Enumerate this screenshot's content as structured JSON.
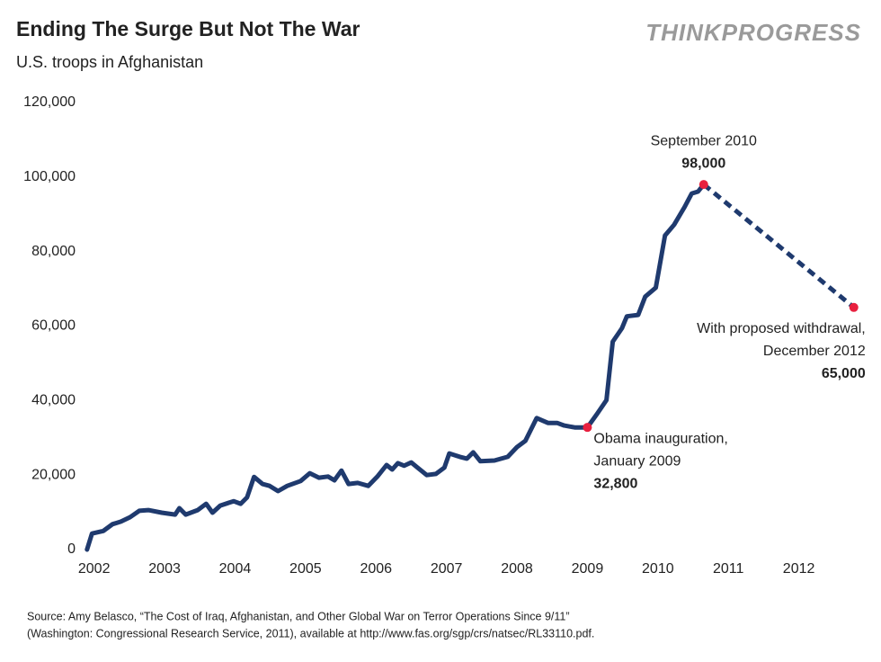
{
  "chart_data": {
    "type": "line",
    "title": "Ending The Surge But Not The War",
    "subtitle": "U.S. troops in Afghanistan",
    "brand": "THINKPROGRESS",
    "source": [
      "Source: Amy Belasco, “The Cost of Iraq, Afghanistan, and Other Global War on Terror Operations Since 9/11”",
      "(Washington: Congressional Research Service, 2011), available at http://www.fas.org/sgp/crs/natsec/RL33110.pdf."
    ],
    "xlim": [
      2001.8,
      2013.0
    ],
    "xticks": [
      2002,
      2003,
      2004,
      2005,
      2006,
      2007,
      2008,
      2009,
      2010,
      2011,
      2012
    ],
    "ylim": [
      0,
      120000
    ],
    "yticks": [
      0,
      {
        "value": 20000,
        "label": "20,000"
      },
      {
        "value": 40000,
        "label": "40,000"
      },
      {
        "value": 60000,
        "label": "60,000"
      },
      {
        "value": 80000,
        "label": "80,000"
      },
      {
        "value": 100000,
        "label": "100,000"
      },
      {
        "value": 120000,
        "label": "120,000"
      }
    ],
    "grid": false,
    "series": [
      {
        "name": "U.S. troops",
        "color": "#1f3a6e",
        "dashed": false,
        "x": [
          2001.9,
          2001.97,
          2002.13,
          2002.26,
          2002.38,
          2002.51,
          2002.64,
          2002.77,
          2002.96,
          2003.15,
          2003.21,
          2003.3,
          2003.47,
          2003.59,
          2003.68,
          2003.79,
          2003.98,
          2004.08,
          2004.17,
          2004.27,
          2004.39,
          2004.49,
          2004.61,
          2004.74,
          2004.93,
          2005.06,
          2005.19,
          2005.32,
          2005.41,
          2005.51,
          2005.61,
          2005.74,
          2005.89,
          2006.02,
          2006.15,
          2006.23,
          2006.31,
          2006.4,
          2006.5,
          2006.59,
          2006.72,
          2006.85,
          2006.97,
          2007.04,
          2007.19,
          2007.29,
          2007.38,
          2007.48,
          2007.68,
          2007.87,
          2008.0,
          2008.12,
          2008.28,
          2008.44,
          2008.57,
          2008.67,
          2008.82,
          2009.0,
          2009.14,
          2009.27,
          2009.36,
          2009.49,
          2009.56,
          2009.72,
          2009.82,
          2009.97,
          2010.1,
          2010.23,
          2010.38,
          2010.48,
          2010.57,
          2010.65
        ],
        "values": [
          0,
          4300,
          5000,
          6800,
          7500,
          8700,
          10400,
          10600,
          9900,
          9400,
          11100,
          9400,
          10600,
          12300,
          9900,
          11800,
          13000,
          12300,
          14000,
          19500,
          17600,
          17100,
          15700,
          17100,
          18400,
          20500,
          19300,
          19600,
          18600,
          21200,
          17600,
          17900,
          17100,
          19600,
          22700,
          21500,
          23200,
          22500,
          23400,
          22000,
          20000,
          20300,
          22000,
          25800,
          24900,
          24400,
          26100,
          23700,
          23900,
          24900,
          27500,
          29200,
          35300,
          34000,
          34000,
          33300,
          32800,
          32800,
          36500,
          40100,
          55800,
          59400,
          62600,
          63000,
          67900,
          70300,
          84300,
          87200,
          92000,
          95600,
          96100,
          98000
        ]
      },
      {
        "name": "With proposed withdrawal",
        "color": "#1f3a6e",
        "dashed": true,
        "x": [
          2010.65,
          2012.78
        ],
        "values": [
          98000,
          65000
        ]
      }
    ],
    "annotations": [
      {
        "x": 2009.0,
        "value": 32800,
        "value_label": "32,800",
        "text": [
          "Obama inauguration,",
          "January 2009"
        ],
        "color": "#e8203f"
      },
      {
        "x": 2010.65,
        "value": 98000,
        "value_label": "98,000",
        "text": [
          "September 2010"
        ],
        "color": "#e8203f"
      },
      {
        "x": 2012.78,
        "value": 65000,
        "value_label": "65,000",
        "text": [
          "With proposed withdrawal,",
          "December 2012"
        ],
        "color": "#e8203f"
      }
    ]
  }
}
